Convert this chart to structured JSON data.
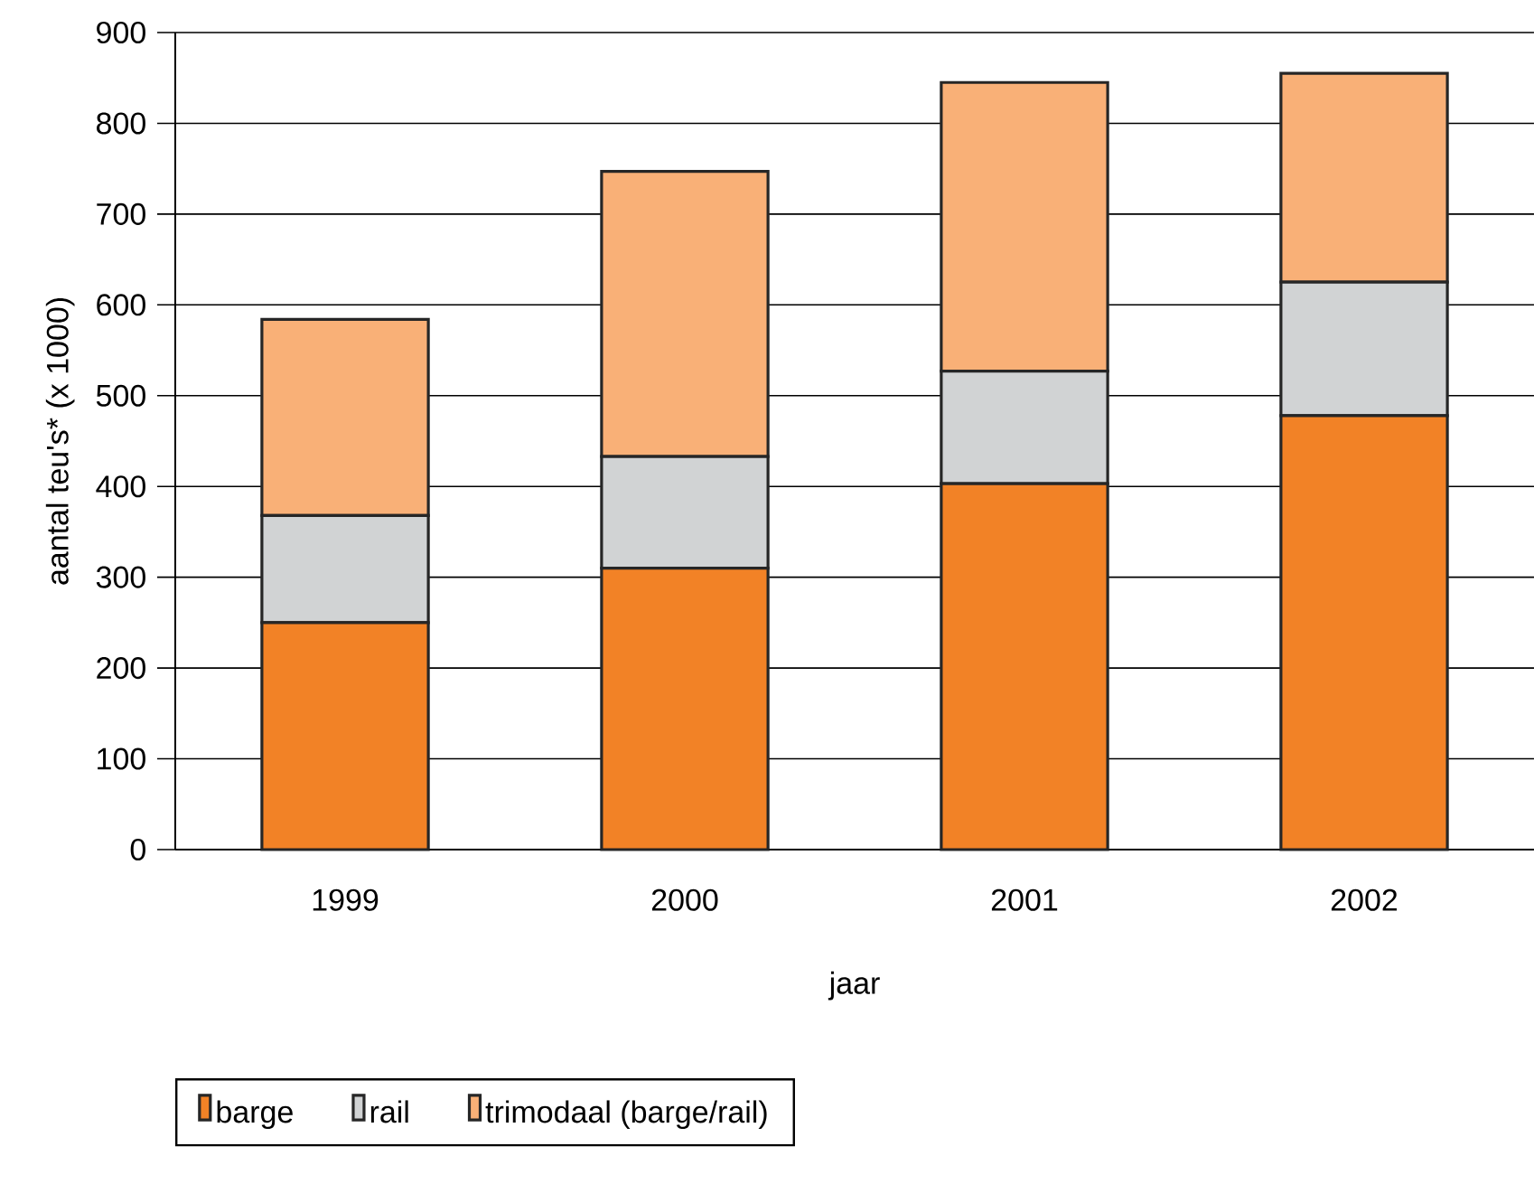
{
  "chart_data": {
    "type": "bar",
    "stacked": true,
    "xlabel": "jaar",
    "ylabel": "aantal teu's* (x 1000)",
    "categories": [
      "1999",
      "2000",
      "2001",
      "2002"
    ],
    "series": [
      {
        "name": "barge",
        "color": "#f28226",
        "values": [
          250,
          310,
          403,
          478
        ]
      },
      {
        "name": "rail",
        "color": "#d1d3d4",
        "values": [
          118,
          123,
          124,
          147
        ]
      },
      {
        "name": "trimodaal (barge/rail)",
        "color": "#f9b077",
        "values": [
          216,
          314,
          318,
          230
        ]
      }
    ],
    "ylim": [
      0,
      900
    ],
    "yticks": [
      0,
      100,
      200,
      300,
      400,
      500,
      600,
      700,
      800,
      900
    ],
    "grid": "y",
    "legend": "bottom"
  }
}
